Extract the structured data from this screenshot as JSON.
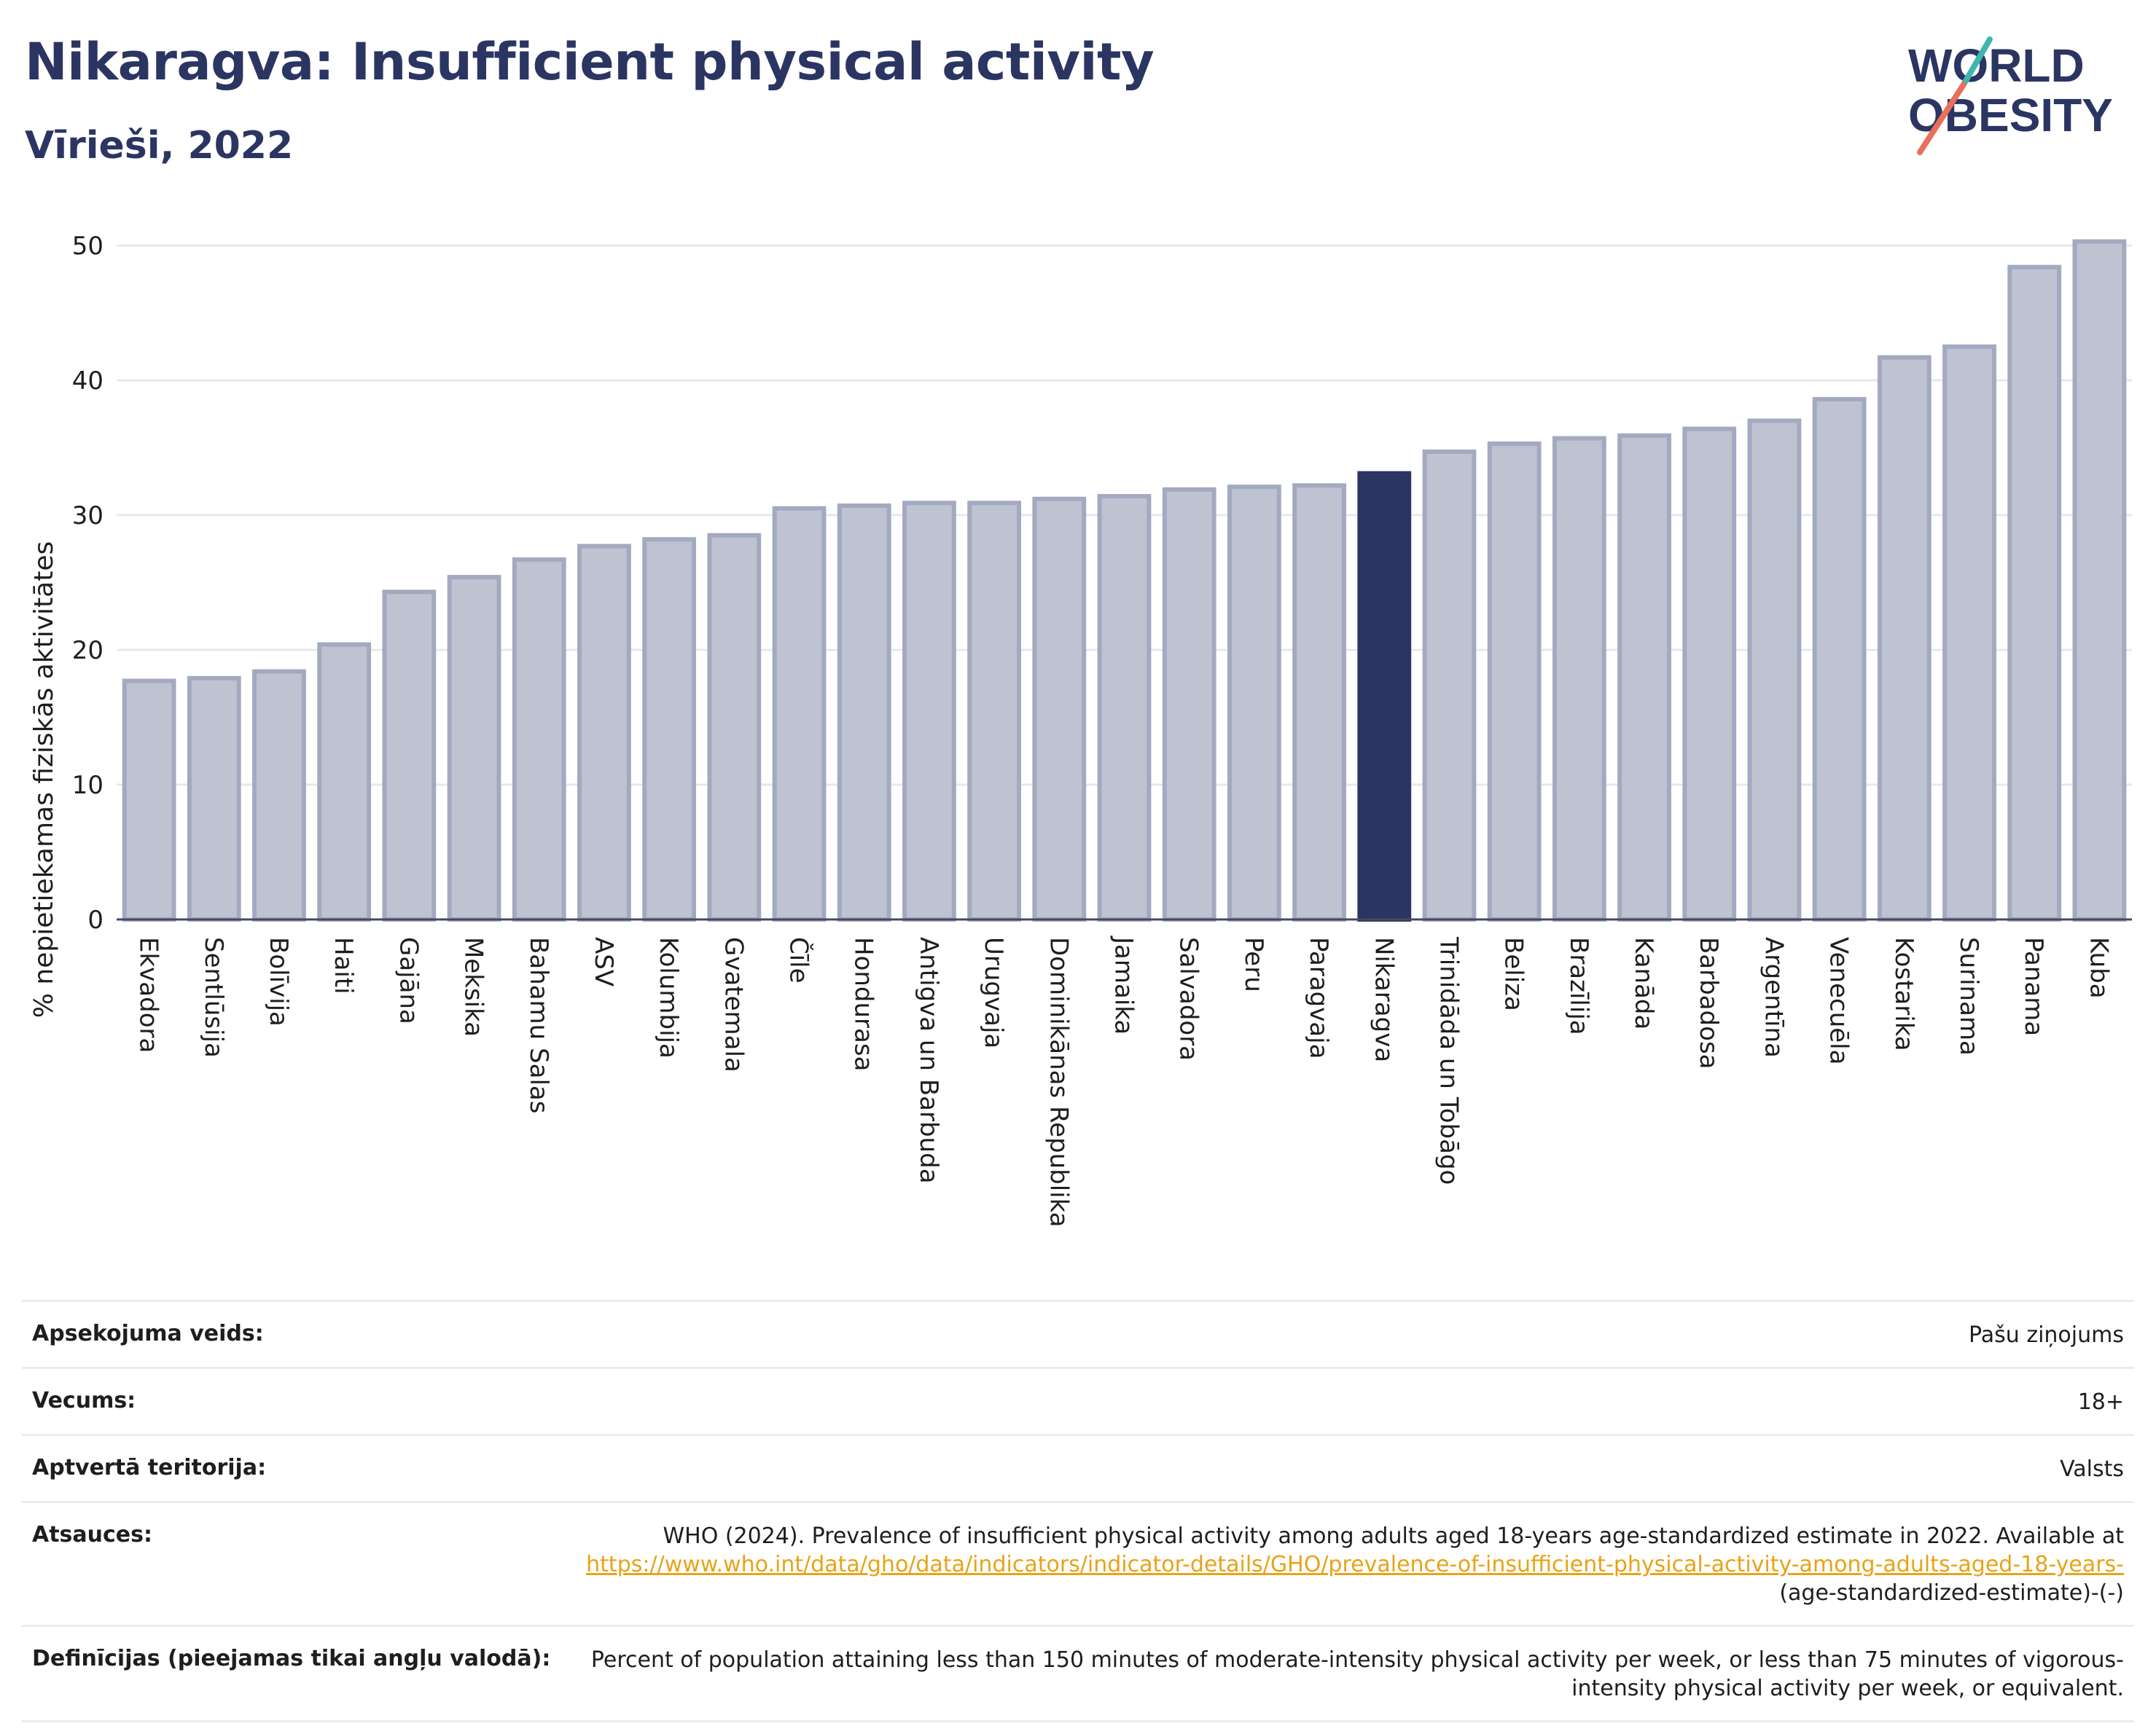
{
  "header": {
    "title": "Nikaragva: Insufficient physical activity",
    "subtitle": "Vīrieši, 2022"
  },
  "logo": {
    "line1": "WORLD",
    "line2": "OBESITY"
  },
  "colors": {
    "bar": "#bfc3d1",
    "bar_stroke": "#a3a9c0",
    "highlight": "#2a3562",
    "grid": "#e6e8f0",
    "title": "#2a3562",
    "link": "#e8a317"
  },
  "chart_data": {
    "type": "bar",
    "ylabel": "% nepietiekamas fiziskās aktivitātes",
    "ylim": [
      0,
      52
    ],
    "yticks": [
      0,
      10,
      20,
      30,
      40,
      50
    ],
    "highlight": "Nikaragva",
    "categories": [
      "Ekvadora",
      "Sentlūsija",
      "Bolīvija",
      "Haiti",
      "Gajāna",
      "Meksika",
      "Bahamu Salas",
      "ASV",
      "Kolumbija",
      "Gvatemala",
      "Čīle",
      "Hondurasa",
      "Antigva un Barbuda",
      "Urugvaja",
      "Dominikānas Republika",
      "Jamaika",
      "Salvadora",
      "Peru",
      "Paragvaja",
      "Nikaragva",
      "Trinidāda un Tobāgo",
      "Beliza",
      "Brazīlija",
      "Kanāda",
      "Barbadosa",
      "Argentīna",
      "Venecuēla",
      "Kostarika",
      "Surinama",
      "Panama",
      "Kuba"
    ],
    "values": [
      17.7,
      17.9,
      18.4,
      20.4,
      24.3,
      25.4,
      26.7,
      27.7,
      28.2,
      28.5,
      30.5,
      30.7,
      30.9,
      30.9,
      31.2,
      31.4,
      31.9,
      32.1,
      32.2,
      33.1,
      34.7,
      35.3,
      35.7,
      35.9,
      36.4,
      37.0,
      38.6,
      41.7,
      42.5,
      48.4,
      50.3
    ]
  },
  "info": {
    "rows": [
      {
        "label": "Apsekojuma veids:",
        "value": "Pašu ziņojums"
      },
      {
        "label": "Vecums:",
        "value": "18+"
      },
      {
        "label": "Aptvertā teritorija:",
        "value": "Valsts"
      }
    ],
    "sources": {
      "label": "Atsauces:",
      "text": "WHO (2024). Prevalence of insufficient physical activity among adults aged 18-years age-standardized estimate in 2022. Available at",
      "link": "https://www.who.int/data/gho/data/indicators/indicator-details/GHO/prevalence-of-insufficient-physical-activity-among-adults-aged-18-years-",
      "suffix": "(age-standardized-estimate)-(-)"
    },
    "definitions": {
      "label": "Definīcijas (pieejamas tikai angļu valodā):",
      "value": "Percent of population attaining less than 150 minutes of moderate-intensity physical activity per week, or less than 75 minutes of vigorous-intensity physical activity per week, or equivalent."
    }
  }
}
